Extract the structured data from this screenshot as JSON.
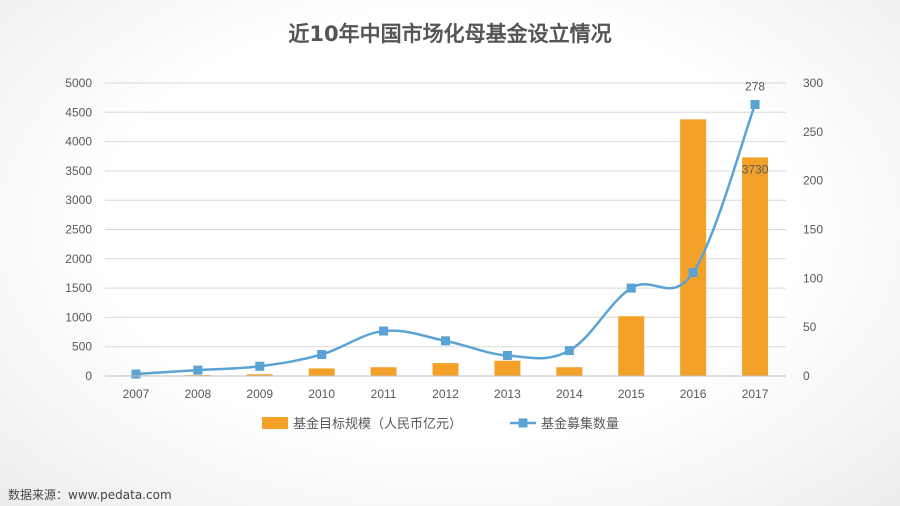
{
  "chart_data": {
    "type": "bar",
    "title": "近10年中国市场化母基金设立情况",
    "categories": [
      "2007",
      "2008",
      "2009",
      "2010",
      "2011",
      "2012",
      "2013",
      "2014",
      "2015",
      "2016",
      "2017"
    ],
    "series": [
      {
        "name": "基金目标规模（人民币亿元）",
        "type": "bar",
        "axis": "left",
        "color": "#F4A12A",
        "values": [
          10,
          15,
          30,
          130,
          150,
          220,
          260,
          150,
          1020,
          4380,
          3730
        ]
      },
      {
        "name": "基金募集数量",
        "type": "line",
        "axis": "right",
        "color": "#5BA3D4",
        "values": [
          2,
          6,
          10,
          22,
          46,
          36,
          21,
          26,
          90,
          106,
          278
        ]
      }
    ],
    "y_left": {
      "min": 0,
      "max": 5000,
      "ticks": [
        "0",
        "500",
        "1000",
        "1500",
        "2000",
        "2500",
        "3000",
        "3500",
        "4000",
        "4500",
        "5000"
      ]
    },
    "y_right": {
      "min": 0,
      "max": 300,
      "ticks": [
        "0",
        "50",
        "100",
        "150",
        "200",
        "250",
        "300"
      ]
    },
    "data_labels": [
      {
        "series": 0,
        "index": 10,
        "text": "3730"
      },
      {
        "series": 1,
        "index": 10,
        "text": "278"
      }
    ],
    "legend": {
      "placement": "bottom"
    },
    "grid": true
  },
  "footer": {
    "source": "数据来源：www.pedata.com"
  }
}
